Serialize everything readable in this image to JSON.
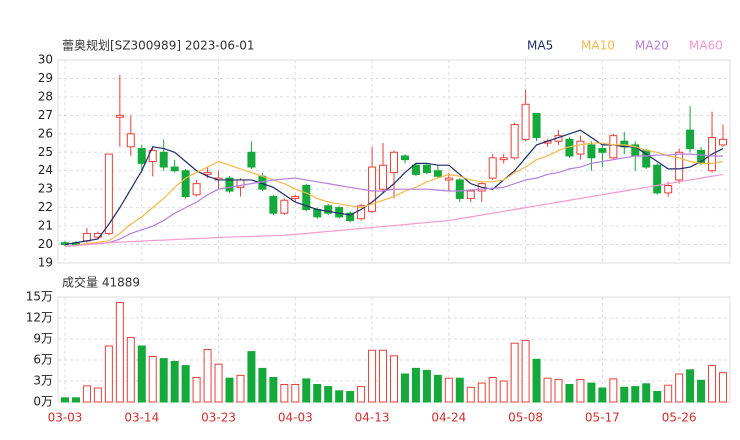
{
  "chart_data": [
    {
      "type": "candlestick",
      "title": "蕾奥规划[SZ300989] 2023-06-01",
      "up_color": "#e8413b",
      "down_color": "#15a83a",
      "categories": [
        "03-03",
        null,
        null,
        null,
        null,
        null,
        null,
        "03-14",
        null,
        null,
        null,
        null,
        null,
        null,
        "03-23",
        null,
        null,
        null,
        null,
        null,
        null,
        "04-03",
        null,
        null,
        null,
        null,
        null,
        null,
        "04-13",
        null,
        null,
        null,
        null,
        null,
        null,
        "04-24",
        null,
        null,
        null,
        null,
        null,
        null,
        "05-08",
        null,
        null,
        null,
        null,
        null,
        null,
        "05-17",
        null,
        null,
        null,
        null,
        null,
        null,
        "05-26",
        null,
        null,
        null,
        null
      ],
      "open": [
        20.1,
        20.1,
        20.2,
        20.4,
        20.6,
        26.9,
        25.3,
        25.2,
        24.5,
        25.0,
        24.2,
        24.0,
        22.7,
        23.8,
        23.5,
        23.6,
        23.1,
        25.0,
        23.7,
        22.6,
        21.7,
        22.5,
        23.2,
        21.9,
        22.1,
        22.0,
        21.7,
        21.4,
        21.8,
        23.0,
        23.9,
        24.8,
        24.3,
        24.3,
        24.0,
        23.5,
        23.5,
        22.5,
        22.9,
        23.6,
        24.6,
        24.7,
        25.7,
        27.1,
        25.5,
        25.6,
        25.7,
        24.9,
        25.4,
        25.2,
        24.7,
        25.6,
        25.4,
        25.1,
        24.3,
        22.8,
        23.5,
        26.2,
        25.1,
        24.0,
        25.4
      ],
      "high": [
        20.2,
        20.2,
        20.9,
        20.7,
        24.9,
        29.2,
        27.0,
        25.4,
        25.3,
        25.7,
        24.6,
        24.1,
        23.5,
        24.2,
        24.0,
        23.7,
        23.6,
        25.6,
        23.9,
        22.7,
        22.5,
        22.7,
        23.3,
        22.0,
        22.2,
        22.1,
        21.8,
        22.2,
        25.3,
        25.5,
        25.1,
        24.9,
        24.4,
        24.4,
        24.3,
        23.9,
        23.6,
        23.0,
        23.4,
        24.9,
        24.9,
        26.6,
        28.4,
        27.1,
        25.7,
        26.2,
        25.8,
        25.9,
        25.6,
        25.4,
        26.0,
        26.1,
        25.6,
        25.2,
        24.4,
        23.4,
        25.2,
        27.5,
        25.3,
        27.2,
        26.5
      ],
      "low": [
        19.9,
        20.0,
        20.1,
        20.3,
        20.5,
        25.3,
        24.8,
        23.9,
        23.7,
        24.0,
        23.9,
        22.5,
        22.6,
        23.6,
        23.0,
        22.8,
        22.6,
        24.1,
        22.9,
        21.6,
        21.6,
        22.3,
        21.8,
        21.4,
        21.6,
        21.4,
        21.2,
        21.3,
        21.7,
        22.8,
        22.5,
        24.4,
        23.7,
        23.8,
        23.6,
        22.9,
        22.3,
        22.3,
        22.3,
        23.5,
        24.4,
        24.6,
        25.6,
        25.6,
        25.3,
        25.4,
        24.7,
        24.6,
        24.0,
        24.2,
        24.6,
        24.9,
        24.0,
        24.1,
        22.7,
        22.6,
        23.3,
        25.0,
        24.3,
        23.9,
        25.3
      ],
      "close": [
        20.0,
        20.0,
        20.6,
        20.6,
        24.9,
        27.0,
        26.0,
        24.4,
        25.1,
        24.2,
        24.0,
        22.6,
        23.3,
        23.9,
        23.6,
        22.9,
        23.5,
        24.2,
        23.0,
        21.7,
        22.4,
        22.6,
        21.9,
        21.5,
        21.7,
        21.5,
        21.3,
        22.1,
        24.2,
        24.3,
        25.0,
        24.6,
        23.8,
        23.9,
        23.7,
        23.6,
        22.5,
        22.9,
        23.3,
        24.7,
        24.7,
        26.5,
        27.6,
        25.8,
        25.6,
        25.9,
        24.8,
        25.6,
        24.7,
        25.0,
        25.9,
        25.3,
        24.8,
        24.2,
        22.8,
        23.2,
        25.0,
        25.2,
        24.4,
        25.8,
        25.7
      ],
      "series": [
        {
          "name": "MA5",
          "color": "#1f2d6b",
          "values": [
            20.0,
            20.1,
            20.2,
            20.3,
            21.1,
            22.0,
            23.0,
            24.0,
            25.3,
            25.2,
            25.0,
            24.5,
            24.0,
            23.7,
            23.5,
            23.5,
            23.5,
            23.5,
            23.3,
            23.1,
            22.7,
            22.3,
            22.1,
            21.9,
            21.8,
            21.7,
            21.6,
            21.9,
            22.3,
            22.8,
            23.3,
            23.9,
            24.4,
            24.4,
            24.3,
            24.3,
            23.8,
            23.3,
            23.1,
            23.0,
            23.5,
            24.0,
            24.7,
            25.4,
            25.6,
            25.8,
            26.0,
            26.2,
            25.8,
            25.4,
            25.4,
            25.3,
            25.3,
            24.9,
            24.5,
            24.1,
            24.1,
            24.2,
            24.5,
            24.9,
            25.2
          ]
        },
        {
          "name": "MA10",
          "color": "#f5b94a",
          "values": [
            19.9,
            19.97,
            20.05,
            20.12,
            20.2,
            20.6,
            21.1,
            21.5,
            22.0,
            22.5,
            23.1,
            23.6,
            23.9,
            24.2,
            24.5,
            24.3,
            24.1,
            23.9,
            23.7,
            23.5,
            23.3,
            23.0,
            22.8,
            22.5,
            22.3,
            22.2,
            22.1,
            22.0,
            22.2,
            22.4,
            22.6,
            22.9,
            23.1,
            23.4,
            23.6,
            23.8,
            23.7,
            23.5,
            23.4,
            23.4,
            23.5,
            23.9,
            24.2,
            24.6,
            24.8,
            25.1,
            25.3,
            25.4,
            25.5,
            25.5,
            25.4,
            25.4,
            25.3,
            25.1,
            25.0,
            24.8,
            24.7,
            24.5,
            24.4,
            24.4,
            24.5
          ]
        },
        {
          "name": "MA20",
          "color": "#b77fdd",
          "values": [
            19.9,
            19.95,
            20.0,
            20.05,
            20.1,
            20.3,
            20.6,
            20.8,
            21.0,
            21.3,
            21.7,
            22.0,
            22.3,
            22.7,
            23.0,
            23.1,
            23.2,
            23.3,
            23.4,
            23.5,
            23.55,
            23.6,
            23.5,
            23.4,
            23.3,
            23.2,
            23.1,
            23.0,
            22.9,
            22.9,
            23.0,
            23.0,
            23.0,
            23.0,
            22.95,
            22.9,
            22.9,
            22.95,
            23.0,
            23.05,
            23.1,
            23.3,
            23.5,
            23.6,
            23.8,
            23.9,
            24.1,
            24.2,
            24.4,
            24.5,
            24.6,
            24.7,
            24.8,
            24.8,
            24.85,
            24.85,
            24.9,
            24.9,
            24.85,
            24.8,
            24.8
          ]
        },
        {
          "name": "MA60",
          "color": "#f29ad0",
          "values": [
            19.9,
            19.95,
            20.0,
            20.05,
            20.1,
            20.13,
            20.16,
            20.19,
            20.22,
            20.24,
            20.27,
            20.3,
            20.32,
            20.35,
            20.38,
            20.4,
            20.42,
            20.44,
            20.46,
            20.48,
            20.5,
            20.55,
            20.6,
            20.66,
            20.71,
            20.76,
            20.82,
            20.87,
            20.92,
            20.98,
            21.03,
            21.08,
            21.14,
            21.19,
            21.25,
            21.3,
            21.4,
            21.5,
            21.6,
            21.7,
            21.8,
            21.9,
            22.0,
            22.1,
            22.2,
            22.3,
            22.4,
            22.5,
            22.6,
            22.7,
            22.8,
            22.9,
            23.0,
            23.1,
            23.2,
            23.3,
            23.4,
            23.5,
            23.6,
            23.7,
            23.8
          ]
        }
      ],
      "ylim": [
        19,
        30
      ],
      "yticks": [
        19,
        20,
        21,
        22,
        23,
        24,
        25,
        26,
        27,
        28,
        29,
        30
      ],
      "grid": true
    },
    {
      "type": "bar",
      "title": "成交量 41889",
      "values": [
        0.6,
        0.6,
        2.3,
        2.0,
        8.0,
        14.2,
        9.2,
        8.0,
        6.5,
        6.2,
        5.8,
        5.2,
        3.5,
        7.5,
        5.4,
        3.4,
        3.8,
        7.2,
        4.8,
        3.5,
        2.5,
        2.5,
        3.3,
        2.5,
        2.2,
        1.6,
        1.5,
        2.2,
        7.4,
        7.4,
        6.6,
        4.0,
        4.8,
        4.5,
        3.8,
        3.4,
        3.4,
        2.1,
        2.7,
        3.5,
        3.0,
        8.4,
        8.8,
        6.1,
        3.4,
        3.2,
        2.5,
        3.2,
        2.7,
        2.0,
        3.3,
        2.1,
        2.2,
        2.6,
        1.5,
        2.4,
        4.0,
        4.6,
        3.1,
        5.2,
        4.1889
      ],
      "ylim": [
        0,
        15
      ],
      "yticks": [
        {
          "value": 0,
          "label": "0万"
        },
        {
          "value": 3,
          "label": "3万"
        },
        {
          "value": 6,
          "label": "6万"
        },
        {
          "value": 9,
          "label": "9万"
        },
        {
          "value": 12,
          "label": "12万"
        },
        {
          "value": 15,
          "label": "15万"
        }
      ],
      "grid": true
    }
  ]
}
